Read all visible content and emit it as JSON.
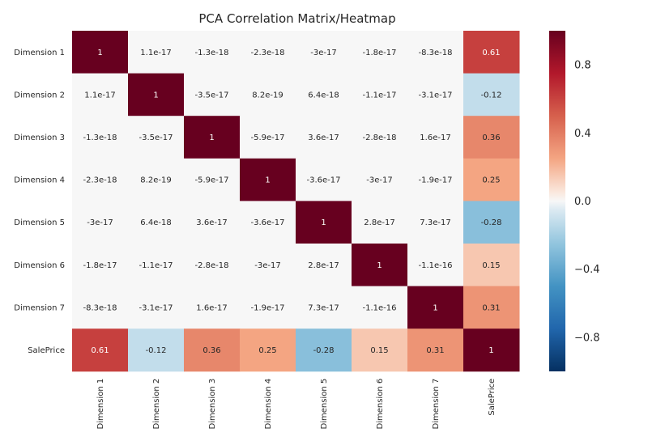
{
  "chart_data": {
    "type": "heatmap",
    "title": "PCA Correlation Matrix/Heatmap",
    "labels": [
      "Dimension 1",
      "Dimension 2",
      "Dimension 3",
      "Dimension 4",
      "Dimension 5",
      "Dimension 6",
      "Dimension 7",
      "SalePrice"
    ],
    "matrix": [
      [
        1,
        1.1e-17,
        -1.3e-18,
        -2.3e-18,
        -3e-17,
        -1.8e-17,
        -8.3e-18,
        0.61
      ],
      [
        1.1e-17,
        1,
        -3.5e-17,
        8.2e-19,
        6.4e-18,
        -1.1e-17,
        -3.1e-17,
        -0.12
      ],
      [
        -1.3e-18,
        -3.5e-17,
        1,
        -5.9e-17,
        3.6e-17,
        -2.8e-18,
        1.6e-17,
        0.36
      ],
      [
        -2.3e-18,
        8.2e-19,
        -5.9e-17,
        1,
        -3.6e-17,
        -3e-17,
        -1.9e-17,
        0.25
      ],
      [
        -3e-17,
        6.4e-18,
        3.6e-17,
        -3.6e-17,
        1,
        2.8e-17,
        7.3e-17,
        -0.28
      ],
      [
        -1.8e-17,
        -1.1e-17,
        -2.8e-18,
        -3e-17,
        2.8e-17,
        1,
        -1.1e-16,
        0.15
      ],
      [
        -8.3e-18,
        -3.1e-17,
        1.6e-17,
        -1.9e-17,
        7.3e-17,
        -1.1e-16,
        1,
        0.31
      ],
      [
        0.61,
        -0.12,
        0.36,
        0.25,
        -0.28,
        0.15,
        0.31,
        1
      ]
    ],
    "annotations": [
      [
        "1",
        "1.1e-17",
        "-1.3e-18",
        "-2.3e-18",
        "-3e-17",
        "-1.8e-17",
        "-8.3e-18",
        "0.61"
      ],
      [
        "1.1e-17",
        "1",
        "-3.5e-17",
        "8.2e-19",
        "6.4e-18",
        "-1.1e-17",
        "-3.1e-17",
        "-0.12"
      ],
      [
        "-1.3e-18",
        "-3.5e-17",
        "1",
        "-5.9e-17",
        "3.6e-17",
        "-2.8e-18",
        "1.6e-17",
        "0.36"
      ],
      [
        "-2.3e-18",
        "8.2e-19",
        "-5.9e-17",
        "1",
        "-3.6e-17",
        "-3e-17",
        "-1.9e-17",
        "0.25"
      ],
      [
        "-3e-17",
        "6.4e-18",
        "3.6e-17",
        "-3.6e-17",
        "1",
        "2.8e-17",
        "7.3e-17",
        "-0.28"
      ],
      [
        "-1.8e-17",
        "-1.1e-17",
        "-2.8e-18",
        "-3e-17",
        "2.8e-17",
        "1",
        "-1.1e-16",
        "0.15"
      ],
      [
        "-8.3e-18",
        "-3.1e-17",
        "1.6e-17",
        "-1.9e-17",
        "7.3e-17",
        "-1.1e-16",
        "1",
        "0.31"
      ],
      [
        "0.61",
        "-0.12",
        "0.36",
        "0.25",
        "-0.28",
        "0.15",
        "0.31",
        "1"
      ]
    ],
    "colorbar": {
      "vmin": -1,
      "vmax": 1,
      "ticks": [
        -0.8,
        -0.4,
        0.0,
        0.4,
        0.8
      ],
      "tick_labels": [
        "−0.8",
        "−0.4",
        "0.0",
        "0.4",
        "0.8"
      ],
      "colormap": "RdBu_r"
    },
    "grid": false,
    "legend": "colorbar-right"
  }
}
